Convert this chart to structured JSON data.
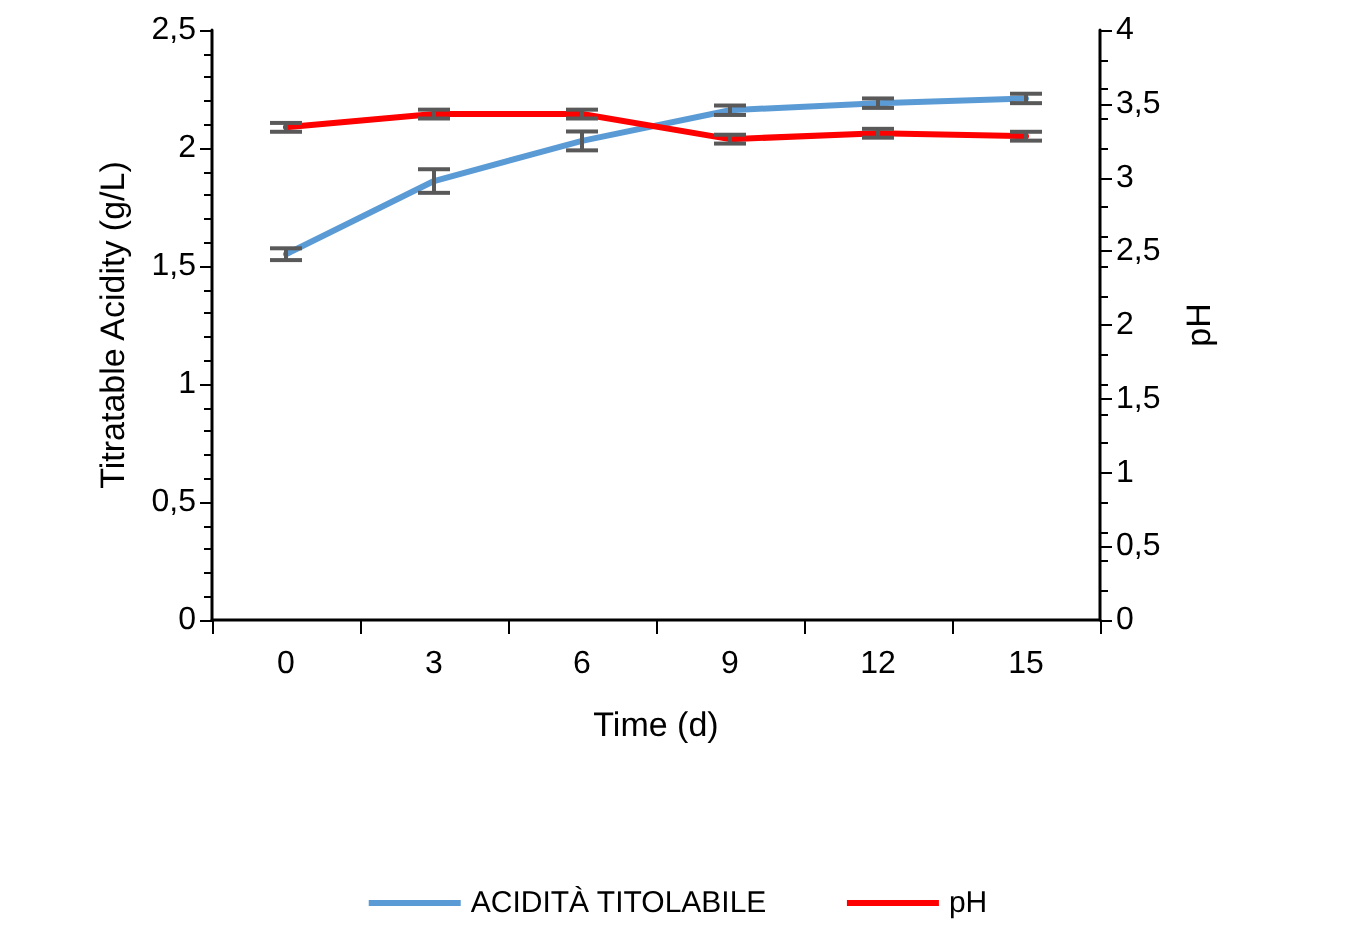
{
  "chart_data": {
    "type": "line",
    "xlabel": "Time (d)",
    "ylabel": "Titratable Acidity (g/L)",
    "y2label": "pH",
    "categories": [
      "0",
      "3",
      "6",
      "9",
      "12",
      "15"
    ],
    "series": [
      {
        "name": "ACIDITÀ TITOLABILE",
        "color": "#5b9bd5",
        "values": [
          1.55,
          1.86,
          2.03,
          2.16,
          2.19,
          2.21
        ],
        "errors": [
          0.025,
          0.05,
          0.04,
          0.02,
          0.02,
          0.02
        ]
      },
      {
        "name": "pH",
        "color": "#ff0000",
        "axis": "y2",
        "values": [
          3.34,
          3.43,
          3.43,
          3.26,
          3.3,
          3.28
        ],
        "errors": [
          0.03,
          0.03,
          0.03,
          0.03,
          0.03,
          0.03
        ]
      }
    ],
    "ylim": [
      0,
      2.5
    ],
    "yticks": [
      0,
      {
        "value": 0.5,
        "label": "0,5"
      },
      1,
      {
        "value": 1.5,
        "label": "1,5"
      },
      2,
      {
        "value": 2.5,
        "label": "2,5"
      }
    ],
    "y2lim": [
      0,
      4
    ],
    "y2ticks": [
      0,
      {
        "value": 0.5,
        "label": "0,5"
      },
      1,
      {
        "value": 1.5,
        "label": "1,5"
      },
      2,
      {
        "value": 2.5,
        "label": "2,5"
      },
      3,
      {
        "value": 3.5,
        "label": "3,5"
      },
      4
    ],
    "legend": "bottom",
    "grid": false,
    "marker": "none",
    "line_style": "solid"
  }
}
